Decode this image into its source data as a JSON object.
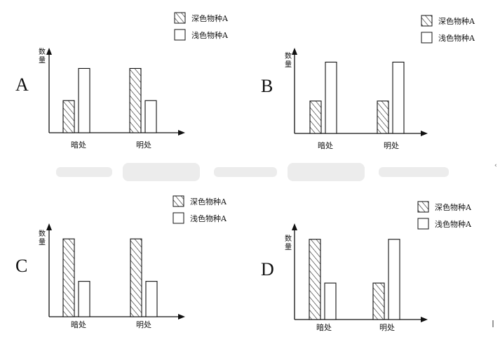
{
  "legend": {
    "dark": "深色物种A",
    "light": "浅色物种A"
  },
  "colors": {
    "line": "#111111",
    "bar_fill": "#ffffff",
    "hatch": "#222222",
    "watermark": "#e8e8e8"
  },
  "chart_data": [
    {
      "type": "bar",
      "option": "A",
      "ylabel": "数量",
      "categories": [
        "暗处",
        "明处"
      ],
      "series": [
        {
          "name": "深色物种A",
          "pattern": "hatched",
          "values": [
            1,
            2
          ]
        },
        {
          "name": "浅色物种A",
          "pattern": "plain",
          "values": [
            2,
            1
          ]
        }
      ],
      "ylim": [
        0,
        2.6
      ],
      "legend_position": "top-right",
      "grid": false
    },
    {
      "type": "bar",
      "option": "B",
      "ylabel": "数量",
      "categories": [
        "暗处",
        "明处"
      ],
      "series": [
        {
          "name": "深色物种A",
          "pattern": "hatched",
          "values": [
            1,
            1
          ]
        },
        {
          "name": "浅色物种A",
          "pattern": "plain",
          "values": [
            2.2,
            2.2
          ]
        }
      ],
      "ylim": [
        0,
        2.6
      ],
      "legend_position": "top-right",
      "grid": false
    },
    {
      "type": "bar",
      "option": "C",
      "ylabel": "数量",
      "categories": [
        "暗处",
        "明处"
      ],
      "series": [
        {
          "name": "深色物种A",
          "pattern": "hatched",
          "values": [
            2.2,
            2.2
          ]
        },
        {
          "name": "浅色物种A",
          "pattern": "plain",
          "values": [
            1,
            1
          ]
        }
      ],
      "ylim": [
        0,
        2.6
      ],
      "legend_position": "top-right",
      "grid": false
    },
    {
      "type": "bar",
      "option": "D",
      "ylabel": "数量",
      "categories": [
        "暗处",
        "明处"
      ],
      "series": [
        {
          "name": "深色物种A",
          "pattern": "hatched",
          "values": [
            2.2,
            1
          ]
        },
        {
          "name": "浅色物种A",
          "pattern": "plain",
          "values": [
            1,
            2.2
          ]
        }
      ],
      "ylim": [
        0,
        2.6
      ],
      "legend_position": "top-right",
      "grid": false
    }
  ]
}
